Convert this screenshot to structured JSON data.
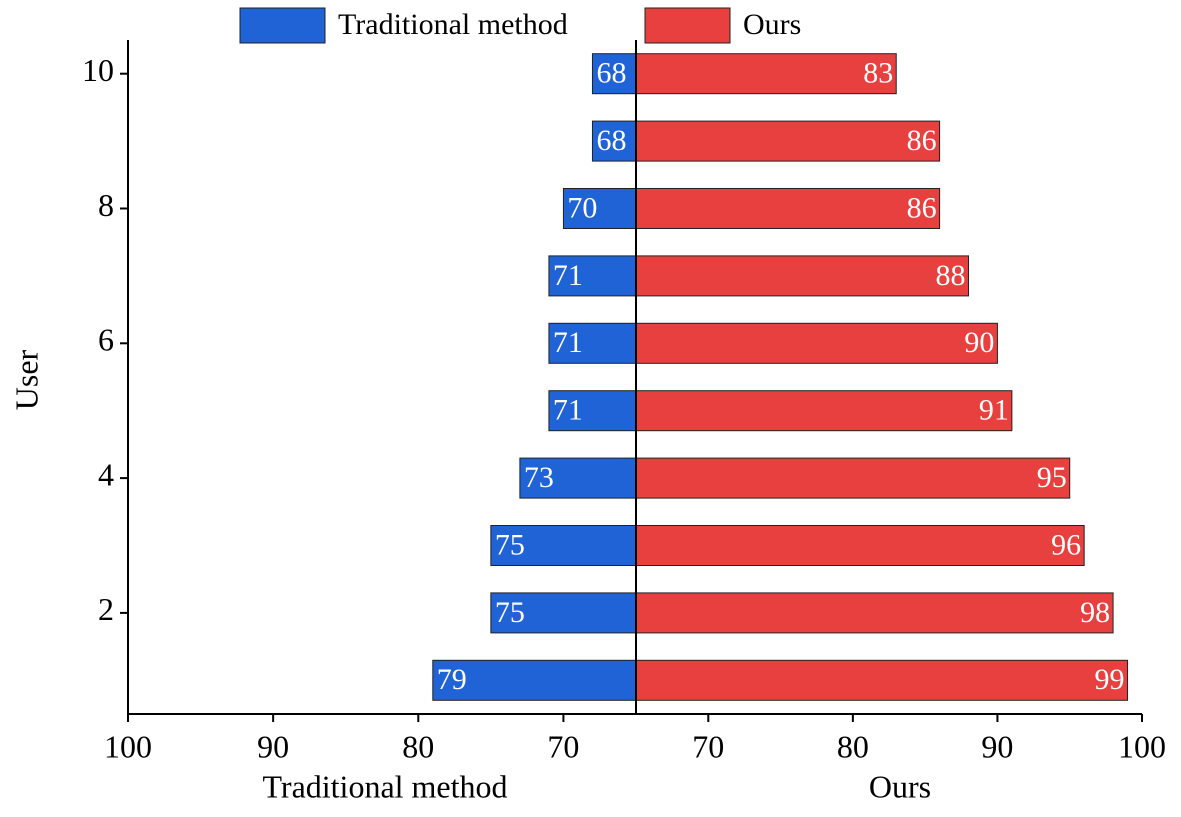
{
  "chart_data": {
    "type": "butterfly",
    "x": [
      1,
      2,
      3,
      4,
      5,
      6,
      7,
      8,
      9,
      10
    ],
    "series": [
      {
        "name": "Traditional method",
        "color": "#1f63d6",
        "values": [
          79,
          75,
          75,
          73,
          71,
          71,
          71,
          70,
          68,
          68
        ]
      },
      {
        "name": "Ours",
        "color": "#e8403f",
        "values": [
          99,
          98,
          96,
          95,
          91,
          90,
          88,
          86,
          86,
          83
        ]
      }
    ],
    "xlim": [
      100,
      65
    ],
    "xticks": [
      100,
      90,
      80,
      70
    ],
    "x2lim": [
      65,
      100
    ],
    "x2ticks": [
      70,
      80,
      90,
      100
    ],
    "ylim": [
      0.5,
      10.5
    ],
    "yticks": [
      2,
      4,
      6,
      8,
      10
    ],
    "xlabel": "Traditional method",
    "x2label": "Ours",
    "ylabel": "User"
  }
}
